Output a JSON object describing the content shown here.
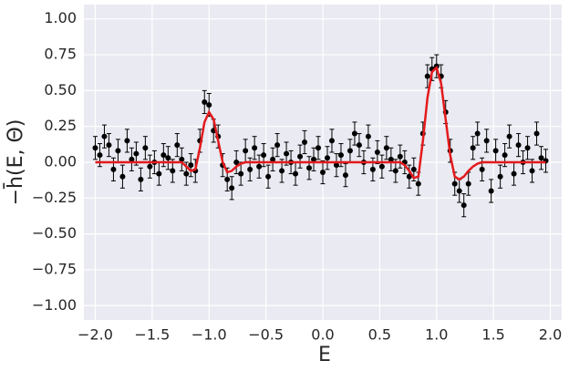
{
  "chart_data": {
    "type": "scatter",
    "xlabel": "E",
    "ylabel": "−h̄(E, Θ)",
    "x": [
      -2,
      -1.96,
      -1.92,
      -1.88,
      -1.84,
      -1.8,
      -1.76,
      -1.72,
      -1.68,
      -1.64,
      -1.6,
      -1.56,
      -1.52,
      -1.48,
      -1.44,
      -1.4,
      -1.36,
      -1.32,
      -1.28,
      -1.24,
      -1.2,
      -1.16,
      -1.12,
      -1.08,
      -1.04,
      -1,
      -0.96,
      -0.92,
      -0.88,
      -0.84,
      -0.8,
      -0.76,
      -0.72,
      -0.68,
      -0.64,
      -0.6,
      -0.56,
      -0.52,
      -0.48,
      -0.44,
      -0.4,
      -0.36,
      -0.32,
      -0.28,
      -0.24,
      -0.2,
      -0.16,
      -0.12,
      -0.08,
      -0.04,
      0,
      0.04,
      0.08,
      0.12,
      0.16,
      0.2,
      0.24,
      0.28,
      0.32,
      0.36,
      0.4,
      0.44,
      0.48,
      0.52,
      0.56,
      0.6,
      0.64,
      0.68,
      0.72,
      0.76,
      0.8,
      0.84,
      0.88,
      0.92,
      0.96,
      1,
      1.04,
      1.08,
      1.12,
      1.16,
      1.2,
      1.24,
      1.28,
      1.32,
      1.36,
      1.4,
      1.44,
      1.48,
      1.52,
      1.56,
      1.6,
      1.64,
      1.68,
      1.72,
      1.76,
      1.8,
      1.84,
      1.88,
      1.92,
      1.96
    ],
    "series": [
      {
        "style": "errorbar",
        "color": "#000000",
        "error": 0.08,
        "values": [
          0.1,
          0.05,
          0.18,
          0.12,
          -0.05,
          0.08,
          -0.1,
          0.15,
          0.02,
          0.06,
          -0.12,
          0.1,
          -0.03,
          0.0,
          -0.08,
          0.05,
          0.03,
          -0.06,
          0.12,
          0.02,
          -0.08,
          -0.02,
          -0.06,
          0.15,
          0.42,
          0.4,
          0.22,
          0.18,
          -0.02,
          -0.12,
          -0.18,
          0.0,
          -0.08,
          0.08,
          -0.05,
          0.1,
          -0.03,
          0.05,
          -0.1,
          0.02,
          0.12,
          -0.06,
          0.06,
          0.0,
          -0.08,
          0.04,
          0.14,
          -0.04,
          0.02,
          0.1,
          -0.07,
          0.03,
          0.15,
          -0.02,
          0.05,
          -0.09,
          0.08,
          0.2,
          0.12,
          0.0,
          0.18,
          -0.05,
          0.07,
          -0.03,
          0.1,
          0.02,
          -0.06,
          0.04,
          0.0,
          -0.1,
          -0.05,
          -0.15,
          0.2,
          0.6,
          0.65,
          0.67,
          0.6,
          0.35,
          0.08,
          -0.15,
          -0.2,
          -0.3,
          -0.15,
          0.1,
          0.2,
          -0.05,
          0.15,
          -0.2,
          0.08,
          -0.1,
          0.05,
          0.18,
          -0.08,
          0.12,
          0.0,
          0.1,
          -0.06,
          0.2,
          0.03,
          0.01
        ]
      },
      {
        "style": "line",
        "color": "#e41a1c",
        "values": [
          0,
          0,
          0,
          0,
          0,
          0,
          0,
          0,
          0,
          0,
          0,
          0,
          0,
          0,
          0,
          0,
          0,
          0,
          0,
          0,
          -0.03,
          -0.06,
          -0.05,
          0.1,
          0.28,
          0.35,
          0.3,
          0.15,
          0.0,
          -0.07,
          -0.06,
          -0.03,
          -0.01,
          0,
          0,
          0,
          0,
          0,
          0,
          0,
          0,
          0,
          0,
          0,
          0,
          0,
          0,
          0,
          0,
          0,
          0,
          0,
          0,
          0,
          0,
          0,
          0,
          0,
          0,
          0,
          0,
          0,
          0,
          0,
          0,
          0,
          0,
          0,
          -0.02,
          -0.06,
          -0.11,
          -0.1,
          0.15,
          0.45,
          0.63,
          0.66,
          0.55,
          0.3,
          0.05,
          -0.1,
          -0.12,
          -0.1,
          -0.06,
          -0.03,
          -0.01,
          0,
          0,
          0,
          0,
          0,
          0,
          0,
          0,
          0,
          0,
          0,
          0,
          0,
          0,
          0
        ]
      }
    ],
    "xlim": [
      -2.1,
      2.1
    ],
    "ylim": [
      -1.1,
      1.1
    ],
    "xticks": [
      {
        "value": -2,
        "label": "−2.0"
      },
      {
        "value": -1.5,
        "label": "−1.5"
      },
      {
        "value": -1,
        "label": "−1.0"
      },
      {
        "value": -0.5,
        "label": "−0.5"
      },
      {
        "value": 0,
        "label": "0.0"
      },
      {
        "value": 0.5,
        "label": "0.5"
      },
      {
        "value": 1,
        "label": "1.0"
      },
      {
        "value": 1.5,
        "label": "1.5"
      },
      {
        "value": 2,
        "label": "2.0"
      }
    ],
    "yticks": [
      {
        "value": -1,
        "label": "−1.00"
      },
      {
        "value": -0.75,
        "label": "−0.75"
      },
      {
        "value": -0.5,
        "label": "−0.50"
      },
      {
        "value": -0.25,
        "label": "−0.25"
      },
      {
        "value": 0,
        "label": "0.00"
      },
      {
        "value": 0.25,
        "label": "0.25"
      },
      {
        "value": 0.5,
        "label": "0.50"
      },
      {
        "value": 0.75,
        "label": "0.75"
      },
      {
        "value": 1,
        "label": "1.00"
      }
    ],
    "grid": true
  }
}
